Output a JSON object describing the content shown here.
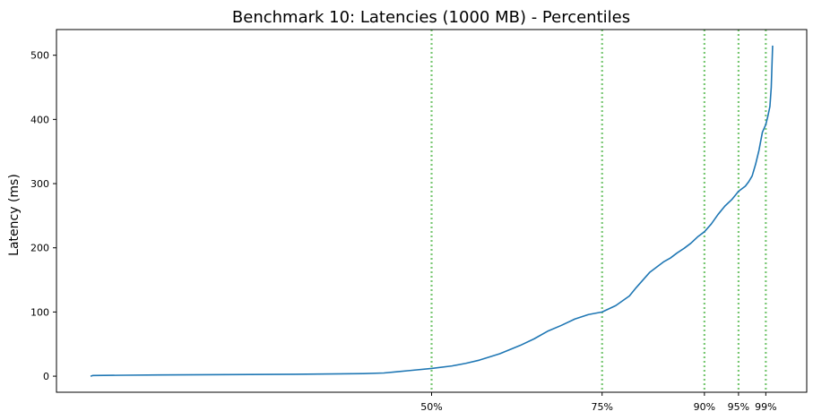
{
  "chart_data": {
    "type": "line",
    "title": "Benchmark 10: Latencies (1000 MB) - Percentiles",
    "xlabel": "",
    "ylabel": "Latency (ms)",
    "xlim": [
      -5,
      105
    ],
    "ylim": [
      -25,
      540
    ],
    "yticks": [
      0,
      100,
      200,
      300,
      400,
      500
    ],
    "xticks": [
      {
        "x": 50,
        "label": "50%"
      },
      {
        "x": 75,
        "label": "75%"
      },
      {
        "x": 90,
        "label": "90%"
      },
      {
        "x": 95,
        "label": "95%"
      },
      {
        "x": 99,
        "label": "99%"
      }
    ],
    "percentile_lines": [
      50,
      75,
      90,
      95,
      99
    ],
    "grid": false,
    "colors": {
      "line": "#1f77b4",
      "percentile_line": "#77c771"
    },
    "series": [
      {
        "x": [
          0,
          0.3,
          5,
          10,
          20,
          30,
          40,
          43,
          45,
          47,
          50,
          53,
          55,
          57,
          60,
          63,
          65,
          67,
          69,
          71,
          73,
          75,
          77,
          79,
          80,
          81,
          82,
          83,
          84,
          85,
          86,
          87,
          88,
          89,
          90,
          91,
          92,
          93,
          94,
          95,
          96,
          96.5,
          97,
          97.5,
          98,
          98.5,
          99,
          99.3,
          99.6,
          99.8,
          100
        ],
        "y": [
          0,
          1,
          1.5,
          2,
          2.5,
          3,
          4,
          5,
          7,
          9,
          12,
          16,
          20,
          25,
          35,
          48,
          58,
          70,
          79,
          89,
          96,
          100,
          110,
          125,
          138,
          150,
          162,
          170,
          178,
          184,
          192,
          199,
          207,
          217,
          225,
          237,
          252,
          265,
          275,
          288,
          296,
          303,
          312,
          330,
          352,
          380,
          392,
          405,
          420,
          450,
          515
        ]
      }
    ]
  }
}
